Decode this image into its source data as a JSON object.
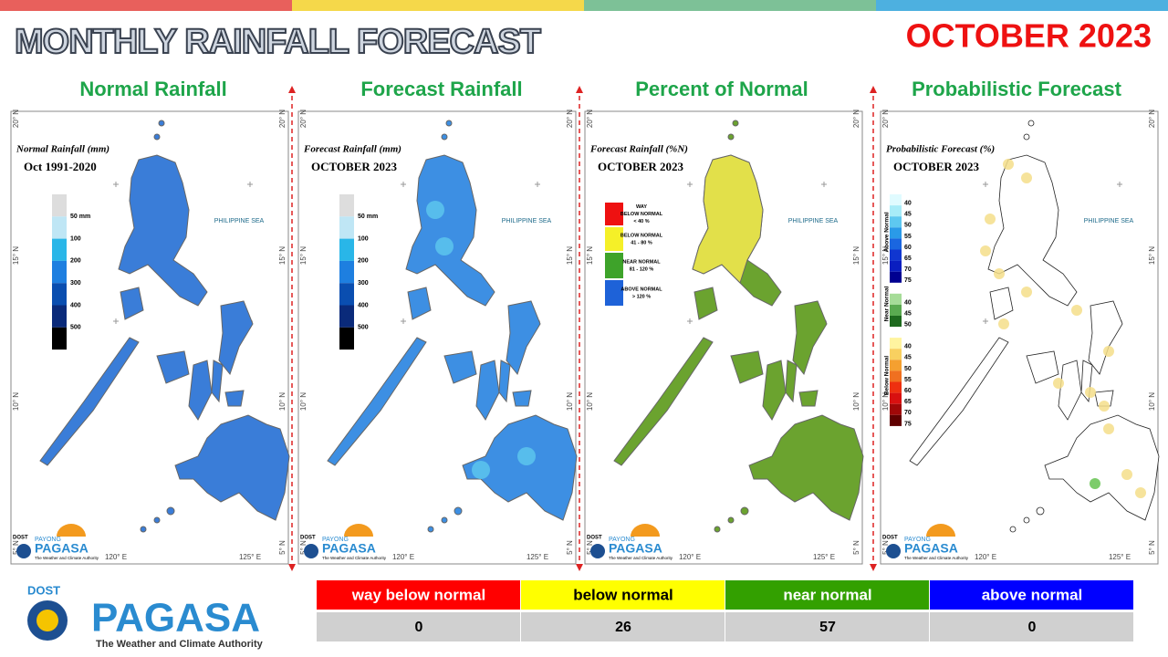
{
  "header": {
    "title": "MONTHLY RAINFALL FORECAST",
    "period": "OCTOBER 2023"
  },
  "panels": [
    {
      "heading": "Normal Rainfall",
      "map_title": "Normal Rainfall (mm)",
      "map_subtitle": "Oct 1991-2020",
      "legend": [
        "50 mm",
        "100",
        "200",
        "300",
        "400",
        "500"
      ]
    },
    {
      "heading": "Forecast Rainfall",
      "map_title": "Forecast Rainfall (mm)",
      "map_subtitle": "OCTOBER 2023",
      "legend": [
        "50 mm",
        "100",
        "200",
        "300",
        "400",
        "500"
      ]
    },
    {
      "heading": "Percent of Normal",
      "map_title": "Forecast Rainfall (%N)",
      "map_subtitle": "OCTOBER 2023",
      "legend": [
        [
          "WAY",
          "BELOW NORMAL",
          "< 40 %"
        ],
        [
          "BELOW NORMAL",
          "41 - 80 %"
        ],
        [
          "NEAR NORMAL",
          "81 - 120 %"
        ],
        [
          "ABOVE NORMAL",
          "> 120 %"
        ]
      ]
    },
    {
      "heading": "Probabilistic Forecast",
      "map_title": "Probabilistic Forecast (%)",
      "map_subtitle": "OCTOBER 2023",
      "legend": [
        {
          "name": "Above Normal",
          "levels": [
            40,
            45,
            50,
            55,
            60,
            65,
            70,
            75
          ]
        },
        {
          "name": "Near Normal",
          "levels": [
            40,
            45,
            50
          ]
        },
        {
          "name": "Below Normal",
          "levels": [
            40,
            45,
            50,
            55,
            60,
            65,
            70,
            75
          ]
        }
      ]
    }
  ],
  "map_labels": {
    "sea": "PHILIPPINE SEA",
    "lat": [
      "20° N",
      "15° N",
      "10° N",
      "5° N"
    ],
    "lon": [
      "120° E",
      "125° E"
    ]
  },
  "logo": {
    "org": "DOST",
    "small": "PAYONG",
    "name": "PAGASA",
    "tagline": "The Weather and Climate Authority"
  },
  "table": {
    "headers": [
      "way below normal",
      "below normal",
      "near normal",
      "above normal"
    ],
    "rows": [
      [
        0,
        26,
        57,
        0
      ]
    ]
  }
}
